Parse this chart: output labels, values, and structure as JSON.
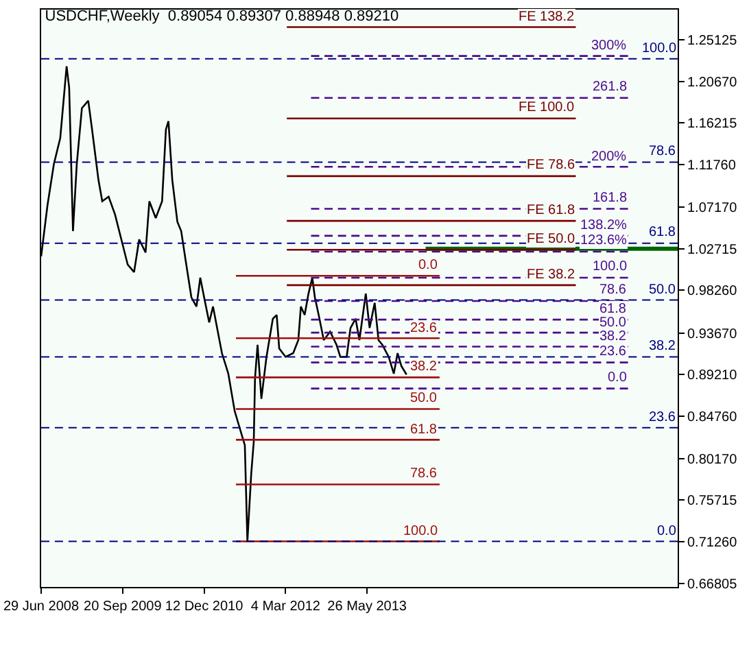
{
  "chart_data": {
    "type": "line",
    "title": "USDCHF,Weekly  0.89054 0.89307 0.88948 0.89210",
    "xlim": [
      "2008-06-29",
      "2018-01-28"
    ],
    "xticks": [
      {
        "value": "2008-06-29",
        "label": "29 Jun 2008"
      },
      {
        "value": "2009-09-20",
        "label": "20 Sep 2009"
      },
      {
        "value": "2010-12-12",
        "label": "12 Dec 2010"
      },
      {
        "value": "2012-03-04",
        "label": "4 Mar 2012"
      },
      {
        "value": "2013-05-26",
        "label": "26 May 2013"
      }
    ],
    "ylim": [
      0.664,
      1.2838
    ],
    "yticks": [
      1.25125,
      {
        "value": 1.2067,
        "label": "1.20670"
      },
      1.16215,
      {
        "value": 1.1176,
        "label": "1.11760"
      },
      {
        "value": 1.0717,
        "label": "1.07170"
      },
      1.02715,
      {
        "value": 0.9826,
        "label": "0.98260"
      },
      {
        "value": 0.9367,
        "label": "0.93670"
      },
      {
        "value": 0.8921,
        "label": "0.89210"
      },
      {
        "value": 0.8476,
        "label": "0.84760"
      },
      {
        "value": 0.8017,
        "label": "0.80170"
      },
      0.75715,
      {
        "value": 0.7126,
        "label": "0.71260"
      },
      0.66805
    ],
    "grid": false,
    "series": [
      {
        "color": "#000000",
        "line_style": "solid",
        "x": [
          "2008-06-29",
          "2008-08-03",
          "2008-09-07",
          "2008-10-12",
          "2008-11-16",
          "2008-11-30",
          "2008-12-21",
          "2009-01-11",
          "2009-02-08",
          "2009-03-15",
          "2009-04-05",
          "2009-05-10",
          "2009-05-31",
          "2009-07-05",
          "2009-08-09",
          "2009-09-13",
          "2009-10-18",
          "2009-11-22",
          "2009-12-20",
          "2010-01-24",
          "2010-02-14",
          "2010-03-21",
          "2010-04-25",
          "2010-05-16",
          "2010-05-30",
          "2010-06-20",
          "2010-07-18",
          "2010-08-08",
          "2010-08-29",
          "2010-10-03",
          "2010-10-31",
          "2010-11-21",
          "2010-12-12",
          "2011-01-09",
          "2011-01-30",
          "2011-03-20",
          "2011-04-24",
          "2011-05-29",
          "2011-06-19",
          "2011-07-24",
          "2011-08-07",
          "2011-08-28",
          "2011-09-11",
          "2011-09-18",
          "2011-10-02",
          "2011-10-23",
          "2011-11-20",
          "2011-12-25",
          "2012-01-15",
          "2012-01-29",
          "2012-03-04",
          "2012-04-15",
          "2012-05-13",
          "2012-05-27",
          "2012-06-17",
          "2012-07-08",
          "2012-07-29",
          "2012-08-12",
          "2012-09-02",
          "2012-09-30",
          "2012-11-04",
          "2012-12-09",
          "2012-12-30",
          "2013-02-03",
          "2013-02-24",
          "2013-03-24",
          "2013-04-14",
          "2013-05-19",
          "2013-06-09",
          "2013-07-07",
          "2013-07-28",
          "2013-08-18",
          "2013-09-22",
          "2013-10-20",
          "2013-11-10",
          "2013-12-01",
          "2013-12-29"
        ],
        "values": [
          1.019,
          1.074,
          1.118,
          1.146,
          1.223,
          1.2,
          1.046,
          1.118,
          1.178,
          1.186,
          1.155,
          1.101,
          1.078,
          1.083,
          1.064,
          1.037,
          1.01,
          1.002,
          1.037,
          1.023,
          1.078,
          1.06,
          1.078,
          1.155,
          1.164,
          1.101,
          1.056,
          1.046,
          1.019,
          0.975,
          0.965,
          0.996,
          0.975,
          0.948,
          0.965,
          0.915,
          0.893,
          0.853,
          0.839,
          0.816,
          0.713,
          0.785,
          0.82,
          0.888,
          0.924,
          0.866,
          0.911,
          0.952,
          0.956,
          0.92,
          0.911,
          0.915,
          0.929,
          0.965,
          0.956,
          0.979,
          0.996,
          0.975,
          0.956,
          0.929,
          0.938,
          0.924,
          0.911,
          0.911,
          0.942,
          0.952,
          0.929,
          0.979,
          0.942,
          0.969,
          0.929,
          0.924,
          0.911,
          0.893,
          0.915,
          0.901,
          0.892
        ]
      },
      {
        "color": "#a01010",
        "line_style": "solid",
        "x": [
          "2011-06-05",
          "2014-06-29"
        ],
        "values": [
          0.998,
          0.998
        ]
      },
      {
        "color": "#a01010",
        "line_style": "solid",
        "x": [
          "2011-06-05",
          "2014-06-29"
        ],
        "values": [
          0.931,
          0.931
        ]
      },
      {
        "color": "#a01010",
        "line_style": "solid",
        "x": [
          "2011-06-05",
          "2014-06-29"
        ],
        "values": [
          0.889,
          0.889
        ]
      },
      {
        "color": "#a01010",
        "line_style": "solid",
        "x": [
          "2011-06-05",
          "2014-06-29"
        ],
        "values": [
          0.855,
          0.855
        ]
      },
      {
        "color": "#a01010",
        "line_style": "solid",
        "x": [
          "2011-06-05",
          "2014-06-29"
        ],
        "values": [
          0.822,
          0.822
        ]
      },
      {
        "color": "#a01010",
        "line_style": "solid",
        "x": [
          "2011-06-05",
          "2014-06-29"
        ],
        "values": [
          0.774,
          0.774
        ]
      },
      {
        "color": "#a01010",
        "line_style": "solid",
        "x": [
          "2011-06-05",
          "2014-06-29"
        ],
        "values": [
          0.713,
          0.713
        ]
      },
      {
        "color": "#4b0a8c",
        "line_style": "dashed",
        "x": [
          "2012-07-22",
          "2017-04-30"
        ],
        "values": [
          1.234,
          1.234
        ]
      },
      {
        "color": "#4b0a8c",
        "line_style": "dashed",
        "x": [
          "2012-07-22",
          "2017-04-30"
        ],
        "values": [
          1.189,
          1.189
        ]
      },
      {
        "color": "#4b0a8c",
        "line_style": "dashed",
        "x": [
          "2012-07-22",
          "2017-04-30"
        ],
        "values": [
          1.115,
          1.115
        ]
      },
      {
        "color": "#4b0a8c",
        "line_style": "dashed",
        "x": [
          "2012-07-22",
          "2017-04-30"
        ],
        "values": [
          1.07,
          1.07
        ]
      },
      {
        "color": "#4b0a8c",
        "line_style": "dashed",
        "x": [
          "2012-07-22",
          "2017-04-30"
        ],
        "values": [
          1.041,
          1.041
        ]
      },
      {
        "color": "#4b0a8c",
        "line_style": "dashed",
        "x": [
          "2012-07-22",
          "2017-04-30"
        ],
        "values": [
          1.024,
          1.024
        ]
      },
      {
        "color": "#4b0a8c",
        "line_style": "dashed",
        "x": [
          "2012-07-22",
          "2017-04-30"
        ],
        "values": [
          0.996,
          0.996
        ]
      },
      {
        "color": "#4b0a8c",
        "line_style": "dashed",
        "x": [
          "2012-07-22",
          "2017-04-30"
        ],
        "values": [
          0.971,
          0.971
        ]
      },
      {
        "color": "#4b0a8c",
        "line_style": "dashed",
        "x": [
          "2012-07-22",
          "2017-04-30"
        ],
        "values": [
          0.951,
          0.951
        ]
      },
      {
        "color": "#4b0a8c",
        "line_style": "dashed",
        "x": [
          "2012-07-22",
          "2017-04-30"
        ],
        "values": [
          0.937,
          0.937
        ]
      },
      {
        "color": "#4b0a8c",
        "line_style": "dashed",
        "x": [
          "2012-07-22",
          "2017-04-30"
        ],
        "values": [
          0.922,
          0.922
        ]
      },
      {
        "color": "#4b0a8c",
        "line_style": "dashed",
        "x": [
          "2012-07-22",
          "2017-04-30"
        ],
        "values": [
          0.905,
          0.905
        ]
      },
      {
        "color": "#4b0a8c",
        "line_style": "dashed",
        "x": [
          "2012-07-22",
          "2017-04-30"
        ],
        "values": [
          0.877,
          0.877
        ]
      },
      {
        "color": "#7a0000",
        "line_style": "solid",
        "x": [
          "2012-03-11",
          "2016-07-17"
        ],
        "values": [
          1.265,
          1.265
        ]
      },
      {
        "color": "#7a0000",
        "line_style": "solid",
        "x": [
          "2012-03-11",
          "2016-07-17"
        ],
        "values": [
          1.167,
          1.167
        ]
      },
      {
        "color": "#7a0000",
        "line_style": "solid",
        "x": [
          "2012-03-11",
          "2016-07-17"
        ],
        "values": [
          1.105,
          1.105
        ]
      },
      {
        "color": "#7a0000",
        "line_style": "solid",
        "x": [
          "2012-03-11",
          "2016-07-17"
        ],
        "values": [
          1.057,
          1.057
        ]
      },
      {
        "color": "#7a0000",
        "line_style": "solid",
        "x": [
          "2012-03-11",
          "2016-07-17"
        ],
        "values": [
          1.026,
          1.026
        ]
      },
      {
        "color": "#7a0000",
        "line_style": "solid",
        "x": [
          "2012-03-11",
          "2016-07-17"
        ],
        "values": [
          0.988,
          0.988
        ]
      },
      {
        "color": "#006400",
        "line_style": "solid",
        "x": [
          "2014-04-13",
          "2018-01-28"
        ],
        "values": [
          1.027,
          1.027
        ]
      }
    ],
    "ref_lines": [
      {
        "axis": "y",
        "value": 1.231,
        "color": "#000080",
        "line_style": "dashed"
      },
      {
        "axis": "y",
        "value": 1.12,
        "color": "#000080",
        "line_style": "dashed"
      },
      {
        "axis": "y",
        "value": 1.033,
        "color": "#000080",
        "line_style": "dashed"
      },
      {
        "axis": "y",
        "value": 0.972,
        "color": "#000080",
        "line_style": "dashed"
      },
      {
        "axis": "y",
        "value": 0.911,
        "color": "#000080",
        "line_style": "dashed"
      },
      {
        "axis": "y",
        "value": 0.835,
        "color": "#000080",
        "line_style": "dashed"
      },
      {
        "axis": "y",
        "value": 0.713,
        "color": "#000080",
        "line_style": "dashed"
      }
    ],
    "annotations": [
      {
        "text": "100.0",
        "x": "2018-01-28",
        "y": 1.231
      },
      {
        "text": "78.6",
        "x": "2018-01-28",
        "y": 1.12
      },
      {
        "text": "61.8",
        "x": "2018-01-28",
        "y": 1.033
      },
      {
        "text": "50.0",
        "x": "2018-01-28",
        "y": 0.972
      },
      {
        "text": "38.2",
        "x": "2018-01-28",
        "y": 0.911
      },
      {
        "text": "23.6",
        "x": "2018-01-28",
        "y": 0.835
      },
      {
        "text": "0.0",
        "x": "2018-01-28",
        "y": 0.713
      },
      {
        "text": "0.0",
        "x": "2014-06-29",
        "y": 0.998
      },
      {
        "text": "23.6",
        "x": "2014-06-29",
        "y": 0.931
      },
      {
        "text": "38.2",
        "x": "2014-06-29",
        "y": 0.889
      },
      {
        "text": "50.0",
        "x": "2014-06-29",
        "y": 0.855
      },
      {
        "text": "61.8",
        "x": "2014-06-29",
        "y": 0.822
      },
      {
        "text": "78.6",
        "x": "2014-06-29",
        "y": 0.774
      },
      {
        "text": "100.0",
        "x": "2014-06-29",
        "y": 0.713
      },
      {
        "text": "300%",
        "x": "2017-04-30",
        "y": 1.234
      },
      {
        "text": "261.8",
        "x": "2017-04-30",
        "y": 1.189
      },
      {
        "text": "200%",
        "x": "2017-04-30",
        "y": 1.115
      },
      {
        "text": "161.8",
        "x": "2017-04-30",
        "y": 1.07
      },
      {
        "text": "138.2%",
        "x": "2017-04-30",
        "y": 1.041
      },
      {
        "text": "123.6%",
        "x": "2017-04-30",
        "y": 1.024
      },
      {
        "text": "100.0",
        "x": "2017-04-30",
        "y": 0.996
      },
      {
        "text": "78.6",
        "x": "2017-04-30",
        "y": 0.971
      },
      {
        "text": "61.8",
        "x": "2017-04-30",
        "y": 0.951
      },
      {
        "text": "50.0",
        "x": "2017-04-30",
        "y": 0.937
      },
      {
        "text": "38.2",
        "x": "2017-04-30",
        "y": 0.922
      },
      {
        "text": "23.6",
        "x": "2017-04-30",
        "y": 0.905
      },
      {
        "text": "0.0",
        "x": "2017-04-30",
        "y": 0.877
      },
      {
        "text": "FE 138.2",
        "x": "2016-07-17",
        "y": 1.265
      },
      {
        "text": "FE 100.0",
        "x": "2016-07-17",
        "y": 1.167
      },
      {
        "text": "FE 78.6",
        "x": "2016-07-17",
        "y": 1.105
      },
      {
        "text": "FE 61.8",
        "x": "2016-07-17",
        "y": 1.057
      },
      {
        "text": "FE 50.0",
        "x": "2016-07-17",
        "y": 1.026
      },
      {
        "text": "FE 38.2",
        "x": "2016-07-17",
        "y": 0.988
      }
    ]
  }
}
